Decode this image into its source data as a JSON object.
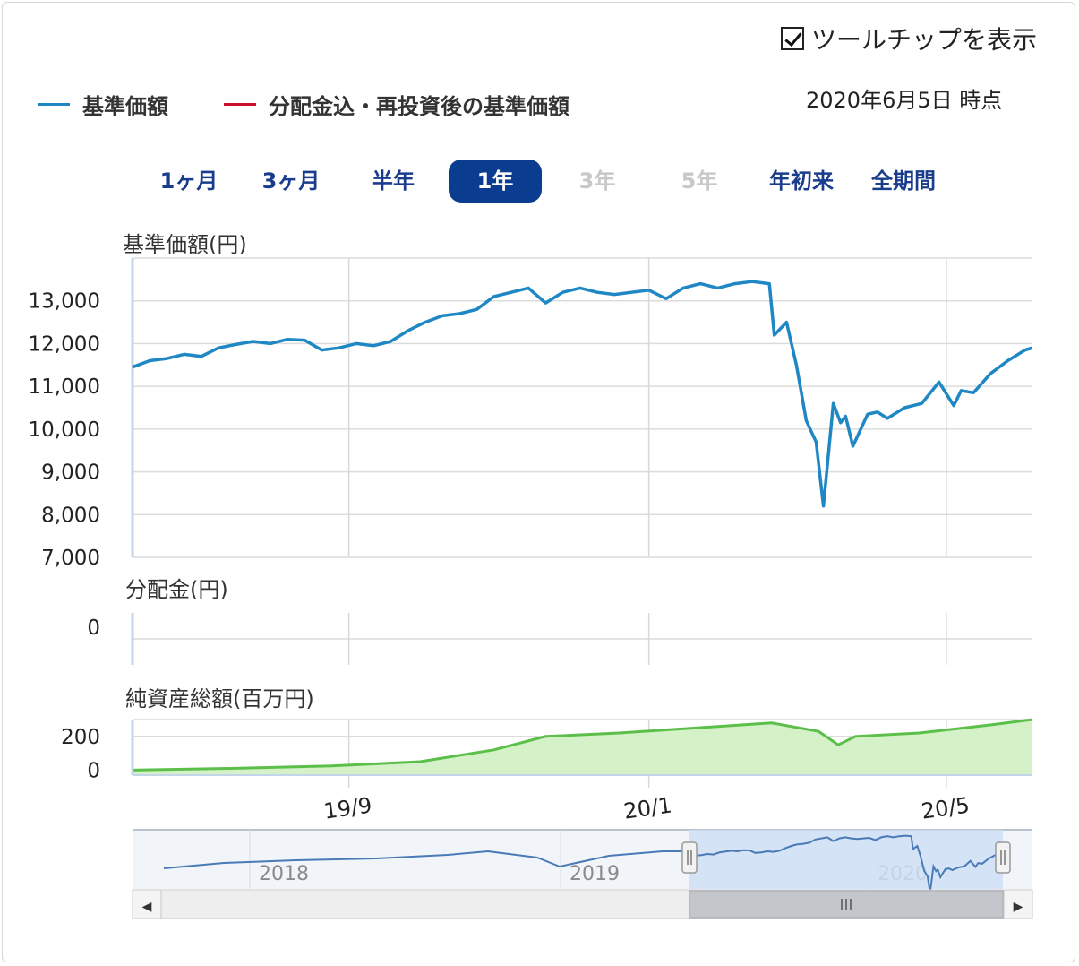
{
  "tooltip_toggle": {
    "label": "ツールチップを表示",
    "checked": true
  },
  "legend": [
    {
      "label": "基準価額",
      "color": "#1f87c3"
    },
    {
      "label": "分配金込・再投資後の基準価額",
      "color": "#c8102e"
    }
  ],
  "as_of": "2020年6月5日 時点",
  "range_buttons": [
    {
      "label": "1ヶ月",
      "state": "enabled"
    },
    {
      "label": "3ヶ月",
      "state": "enabled"
    },
    {
      "label": "半年",
      "state": "enabled"
    },
    {
      "label": "1年",
      "state": "active"
    },
    {
      "label": "3年",
      "state": "disabled"
    },
    {
      "label": "5年",
      "state": "disabled"
    },
    {
      "label": "年初来",
      "state": "enabled"
    },
    {
      "label": "全期間",
      "state": "enabled"
    }
  ],
  "colors": {
    "nav_line": "#1f87c3",
    "asset_line": "#5cbf4a",
    "asset_fill": "#d4f1c8",
    "active_button": "#0a3d8f",
    "nav_blue": "#1a3c8c"
  },
  "chart_data": [
    {
      "type": "line",
      "title": "基準価額(円)",
      "ylim": [
        7000,
        14000
      ],
      "yticks": [
        7000,
        8000,
        9000,
        10000,
        11000,
        12000,
        13000
      ],
      "ytick_labels": [
        "7,000",
        "8,000",
        "9,000",
        "10,000",
        "11,000",
        "12,000",
        "13,000"
      ],
      "xlim": [
        "2019-06-05",
        "2020-06-05"
      ],
      "grid": true,
      "series": [
        {
          "name": "基準価額",
          "x": [
            "2019-06-05",
            "2019-06-12",
            "2019-06-19",
            "2019-06-26",
            "2019-07-03",
            "2019-07-10",
            "2019-07-17",
            "2019-07-24",
            "2019-07-31",
            "2019-08-07",
            "2019-08-14",
            "2019-08-21",
            "2019-08-28",
            "2019-09-04",
            "2019-09-11",
            "2019-09-18",
            "2019-09-25",
            "2019-10-02",
            "2019-10-09",
            "2019-10-16",
            "2019-10-23",
            "2019-10-30",
            "2019-11-06",
            "2019-11-13",
            "2019-11-20",
            "2019-11-27",
            "2019-12-04",
            "2019-12-11",
            "2019-12-18",
            "2019-12-25",
            "2020-01-01",
            "2020-01-08",
            "2020-01-15",
            "2020-01-22",
            "2020-01-29",
            "2020-02-05",
            "2020-02-12",
            "2020-02-19",
            "2020-02-21",
            "2020-02-26",
            "2020-03-01",
            "2020-03-05",
            "2020-03-09",
            "2020-03-12",
            "2020-03-16",
            "2020-03-19",
            "2020-03-21",
            "2020-03-24",
            "2020-03-30",
            "2020-04-03",
            "2020-04-07",
            "2020-04-14",
            "2020-04-21",
            "2020-04-28",
            "2020-05-04",
            "2020-05-07",
            "2020-05-12",
            "2020-05-19",
            "2020-05-26",
            "2020-06-02",
            "2020-06-05"
          ],
          "y": [
            11450,
            11600,
            11650,
            11750,
            11700,
            11900,
            11980,
            12050,
            12000,
            12100,
            12080,
            11850,
            11900,
            12000,
            11950,
            12050,
            12300,
            12500,
            12650,
            12700,
            12800,
            13100,
            13200,
            13300,
            12950,
            13200,
            13300,
            13200,
            13150,
            13200,
            13250,
            13050,
            13300,
            13400,
            13300,
            13400,
            13450,
            13400,
            12200,
            12500,
            11500,
            10200,
            9700,
            8200,
            10600,
            10150,
            10300,
            9600,
            10350,
            10400,
            10250,
            10500,
            10600,
            11100,
            10550,
            10900,
            10850,
            11300,
            11600,
            11850,
            11900
          ]
        }
      ]
    },
    {
      "type": "bar",
      "title": "分配金(円)",
      "ylim": [
        0,
        1
      ],
      "yticks": [
        0
      ],
      "ytick_labels": [
        "0"
      ],
      "series": [
        {
          "name": "分配金",
          "values": []
        }
      ]
    },
    {
      "type": "area",
      "title": "純資産総額(百万円)",
      "ylim": [
        -30,
        300
      ],
      "yticks": [
        0,
        200
      ],
      "ytick_labels": [
        "0",
        "200"
      ],
      "xtick_labels": [
        "19/9",
        "20/1",
        "20/5"
      ],
      "xticks": [
        "2019-09-01",
        "2020-01-01",
        "2020-05-01"
      ],
      "series": [
        {
          "name": "純資産総額",
          "x": [
            "2019-06-05",
            "2019-07-15",
            "2019-08-25",
            "2019-09-30",
            "2019-10-30",
            "2019-11-20",
            "2019-12-20",
            "2020-01-20",
            "2020-02-20",
            "2020-03-10",
            "2020-03-18",
            "2020-03-25",
            "2020-04-20",
            "2020-05-20",
            "2020-06-05"
          ],
          "y": [
            0,
            10,
            25,
            50,
            120,
            200,
            220,
            250,
            280,
            230,
            150,
            200,
            220,
            270,
            300
          ]
        }
      ]
    }
  ],
  "navigator": {
    "year_labels": [
      "2018",
      "2019",
      "2020"
    ],
    "scroll_left_label": "◀",
    "scroll_right_label": "▶"
  }
}
